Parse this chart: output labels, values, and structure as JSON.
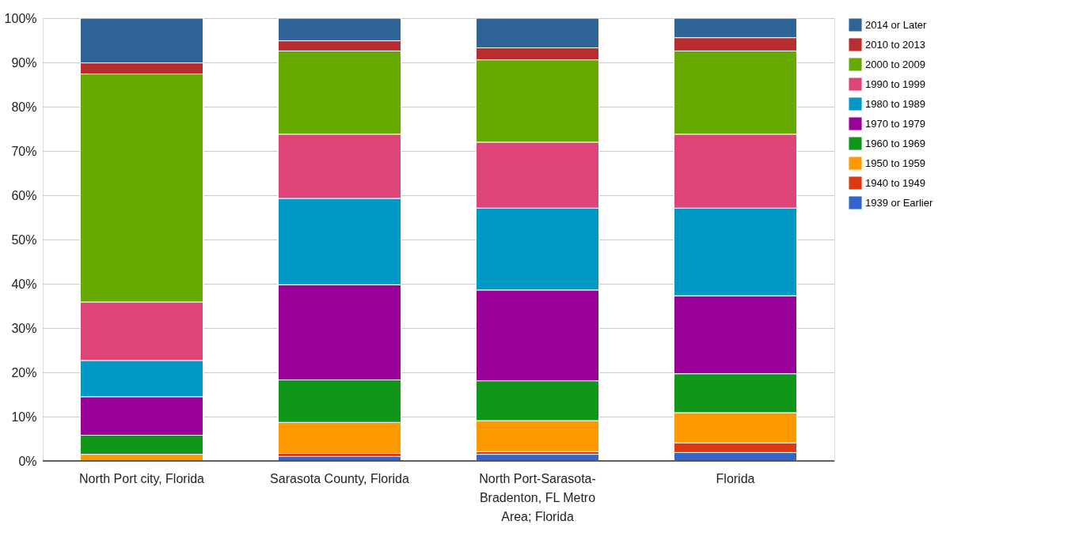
{
  "chart_data": {
    "type": "bar",
    "stacked": true,
    "categories": [
      "North Port city, Florida",
      "Sarasota County, Florida",
      "North Port-Sarasota-Bradenton, FL Metro Area; Florida",
      "Florida"
    ],
    "series": [
      {
        "name": "1939 or Earlier",
        "color": "#3366cc",
        "values": [
          null,
          1.0,
          1.5,
          1.9
        ]
      },
      {
        "name": "1940 to 1949",
        "color": "#dc3912",
        "values": [
          null,
          0.7,
          0.6,
          2.2
        ]
      },
      {
        "name": "1950 to 1959",
        "color": "#ff9900",
        "values": [
          1.5,
          7.0,
          7.0,
          6.8
        ]
      },
      {
        "name": "1960 to 1969",
        "color": "#109618",
        "values": [
          4.3,
          9.6,
          9.0,
          8.8
        ]
      },
      {
        "name": "1970 to 1979",
        "color": "#990099",
        "values": [
          8.7,
          21.5,
          20.5,
          17.6
        ]
      },
      {
        "name": "1980 to 1989",
        "color": "#0099c6",
        "values": [
          8.2,
          19.5,
          18.5,
          19.8
        ]
      },
      {
        "name": "1990 to 1999",
        "color": "#dd4477",
        "values": [
          13.2,
          14.5,
          14.9,
          16.7
        ]
      },
      {
        "name": "2000 to 2009",
        "color": "#66aa00",
        "values": [
          51.5,
          18.8,
          18.6,
          18.8
        ]
      },
      {
        "name": "2010 to 2013",
        "color": "#b82e2e",
        "values": [
          2.5,
          2.3,
          2.7,
          3.0
        ]
      },
      {
        "name": "2014 or Later",
        "color": "#2f6497",
        "values": [
          10.1,
          5.1,
          6.7,
          4.4
        ]
      }
    ],
    "ylim": [
      0,
      100
    ],
    "yticks": [
      {
        "value": 0,
        "label": "0%"
      },
      {
        "value": 10,
        "label": "10%"
      },
      {
        "value": 20,
        "label": "20%"
      },
      {
        "value": 30,
        "label": "30%"
      },
      {
        "value": 40,
        "label": "40%"
      },
      {
        "value": 50,
        "label": "50%"
      },
      {
        "value": 60,
        "label": "60%"
      },
      {
        "value": 70,
        "label": "70%"
      },
      {
        "value": 80,
        "label": "80%"
      },
      {
        "value": 90,
        "label": "90%"
      },
      {
        "value": 100,
        "label": "100%"
      }
    ],
    "grid": "y",
    "legend": "top right"
  }
}
